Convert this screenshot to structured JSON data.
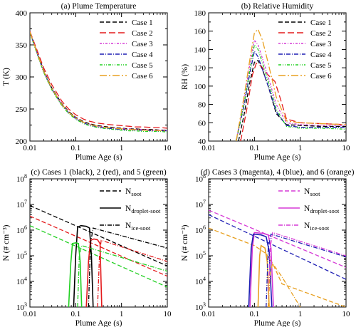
{
  "colors": {
    "black": "#000000",
    "red": "#e41a1c",
    "magenta": "#d63ad6",
    "blue": "#1f1fb4",
    "green": "#22d022",
    "orange": "#e8a020",
    "case_red": "#dd2222"
  },
  "chart_data": [
    {
      "type": "line",
      "title": "(a) Plume Temperature",
      "xlabel": "Plume Age (s)",
      "ylabel": "T (K)",
      "xscale": "log",
      "xlim": [
        0.01,
        10
      ],
      "ylim": [
        200,
        400
      ],
      "xticks": [
        "0.01",
        "0.1",
        "1",
        "10"
      ],
      "yticks": [
        "200",
        "250",
        "300",
        "350",
        "400"
      ],
      "legend_position": "top-right",
      "x": [
        0.01,
        0.015,
        0.02,
        0.03,
        0.05,
        0.07,
        0.1,
        0.15,
        0.2,
        0.3,
        0.5,
        0.7,
        1,
        1.5,
        2,
        3,
        5,
        7,
        10
      ],
      "series": [
        {
          "name": "Case 1",
          "color": "black",
          "dash": "6,3",
          "values": [
            370,
            335,
            310,
            283,
            258,
            246,
            237,
            230,
            227,
            224,
            222,
            221,
            220,
            219,
            219,
            218,
            218,
            217,
            217
          ]
        },
        {
          "name": "Case 2",
          "color": "red",
          "dash": "9,4",
          "values": [
            371,
            338,
            314,
            288,
            262,
            250,
            241,
            234,
            231,
            228,
            226,
            225,
            224,
            223,
            222,
            222,
            221,
            221,
            220
          ]
        },
        {
          "name": "Case 3",
          "color": "magenta",
          "dash": "3,2,1,2",
          "values": [
            370,
            334,
            309,
            282,
            257,
            245,
            236,
            229,
            226,
            223,
            221,
            220,
            219,
            219,
            218,
            218,
            217,
            217,
            216
          ]
        },
        {
          "name": "Case 4",
          "color": "blue",
          "dash": "6,2,1,2",
          "values": [
            370,
            333,
            308,
            281,
            256,
            244,
            235,
            228,
            225,
            222,
            220,
            219,
            218,
            218,
            217,
            217,
            216,
            216,
            216
          ]
        },
        {
          "name": "Case 5",
          "color": "green",
          "dash": "4,2,1,2,1,2",
          "values": [
            369,
            332,
            307,
            280,
            255,
            243,
            234,
            227,
            224,
            221,
            219,
            218,
            217,
            216,
            216,
            215,
            215,
            215,
            214
          ]
        },
        {
          "name": "Case 6",
          "color": "orange",
          "dash": "10,3,2,3",
          "values": [
            370,
            334,
            309,
            282,
            257,
            245,
            236,
            229,
            226,
            223,
            221,
            220,
            219,
            218,
            218,
            217,
            217,
            216,
            216
          ]
        }
      ]
    },
    {
      "type": "line",
      "title": "(b) Relative Humidity",
      "xlabel": "Plume Age (s)",
      "ylabel": "RH (%)",
      "xscale": "log",
      "xlim": [
        0.01,
        10
      ],
      "ylim": [
        40,
        180
      ],
      "xticks": [
        "0.01",
        "0.1",
        "1",
        "10"
      ],
      "yticks": [
        "40",
        "60",
        "80",
        "100",
        "120",
        "140",
        "160",
        "180"
      ],
      "legend_position": "top-right",
      "series": [
        {
          "name": "Case 1",
          "color": "black",
          "dash": "6,3",
          "x": [
            0.045,
            0.06,
            0.08,
            0.1,
            0.12,
            0.15,
            0.2,
            0.3,
            0.5,
            1,
            3,
            10
          ],
          "values": [
            40,
            70,
            105,
            126,
            128,
            118,
            100,
            70,
            58,
            57,
            56,
            56
          ]
        },
        {
          "name": "Case 2",
          "color": "red",
          "dash": "9,4",
          "x": [
            0.05,
            0.07,
            0.09,
            0.11,
            0.14,
            0.2,
            0.28,
            0.35,
            0.5,
            1,
            3,
            10
          ],
          "values": [
            40,
            78,
            112,
            125,
            122,
            112,
            105,
            90,
            64,
            60,
            59,
            58
          ]
        },
        {
          "name": "Case 3",
          "color": "magenta",
          "dash": "3,2,1,2",
          "x": [
            0.04,
            0.06,
            0.08,
            0.1,
            0.12,
            0.15,
            0.2,
            0.3,
            0.5,
            1,
            3,
            10
          ],
          "values": [
            40,
            85,
            125,
            150,
            145,
            130,
            110,
            80,
            60,
            58,
            57,
            57
          ]
        },
        {
          "name": "Case 4",
          "color": "blue",
          "dash": "6,2,1,2",
          "x": [
            0.04,
            0.06,
            0.08,
            0.1,
            0.12,
            0.15,
            0.2,
            0.3,
            0.5,
            1,
            3,
            10
          ],
          "values": [
            40,
            80,
            115,
            138,
            132,
            118,
            100,
            72,
            57,
            55,
            55,
            55
          ]
        },
        {
          "name": "Case 5",
          "color": "green",
          "dash": "4,2,1,2,1,2",
          "x": [
            0.04,
            0.06,
            0.08,
            0.1,
            0.12,
            0.15,
            0.2,
            0.3,
            0.5,
            1,
            3,
            10
          ],
          "values": [
            40,
            82,
            118,
            145,
            140,
            125,
            105,
            75,
            56,
            54,
            54,
            53
          ]
        },
        {
          "name": "Case 6",
          "color": "orange",
          "dash": "10,3,2,3",
          "x": [
            0.04,
            0.06,
            0.08,
            0.1,
            0.12,
            0.15,
            0.2,
            0.3,
            0.5,
            1,
            3,
            10
          ],
          "values": [
            40,
            90,
            130,
            158,
            162,
            150,
            125,
            88,
            62,
            60,
            59,
            58
          ]
        }
      ]
    },
    {
      "type": "line",
      "title": "(c) Cases 1 (black), 2 (red), and 5 (green)",
      "xlabel": "Plume Age (s)",
      "ylabel": "N (# cm⁻³)",
      "xscale": "log",
      "yscale": "log",
      "xlim": [
        0.01,
        10
      ],
      "ylim": [
        1000,
        100000000
      ],
      "xticks": [
        "0.01",
        "0.1",
        "1",
        "10"
      ],
      "ytick_bases": [
        "10",
        "10",
        "10",
        "10",
        "10",
        "10"
      ],
      "ytick_exps": [
        "3",
        "4",
        "5",
        "6",
        "7",
        "8"
      ],
      "legend_position": "top-right",
      "legend": [
        {
          "label": "N",
          "sub": "soot",
          "dash": "6,3"
        },
        {
          "label": "N",
          "sub": "droplet-soot",
          "dash": "none"
        },
        {
          "label": "N",
          "sub": "ice-soot",
          "dash": "6,2,1,2"
        }
      ],
      "series": [
        {
          "type": "soot",
          "color": "black",
          "dash": "6,3",
          "x": [
            0.01,
            10
          ],
          "values": [
            9000000,
            40000
          ]
        },
        {
          "type": "soot",
          "color": "red",
          "dash": "6,3",
          "x": [
            0.01,
            10
          ],
          "values": [
            3500000,
            16000
          ]
        },
        {
          "type": "soot",
          "color": "green",
          "dash": "6,3",
          "x": [
            0.01,
            10
          ],
          "values": [
            1500000,
            6000
          ]
        },
        {
          "type": "droplet",
          "color": "black",
          "dash": "none",
          "x": [
            0.09,
            0.1,
            0.11,
            0.13,
            0.17,
            0.2,
            0.22,
            0.24
          ],
          "values": [
            1000,
            100000,
            1300000,
            1500000,
            1400000,
            1200000,
            100000,
            1000
          ]
        },
        {
          "type": "droplet",
          "color": "red",
          "dash": "none",
          "x": [
            0.17,
            0.19,
            0.21,
            0.25,
            0.3,
            0.34,
            0.37
          ],
          "values": [
            1000,
            60000,
            400000,
            450000,
            420000,
            300000,
            1000
          ]
        },
        {
          "type": "droplet",
          "color": "green",
          "dash": "none",
          "x": [
            0.07,
            0.078,
            0.085,
            0.1,
            0.115,
            0.125,
            0.135
          ],
          "values": [
            1000,
            50000,
            300000,
            320000,
            300000,
            60000,
            1000
          ]
        },
        {
          "type": "ice",
          "color": "black",
          "dash": "6,2,1,2",
          "x": [
            0.19,
            0.21,
            0.24,
            10
          ],
          "values": [
            1000,
            300000,
            1200000,
            200000
          ]
        },
        {
          "type": "ice",
          "color": "red",
          "dash": "6,2,1,2",
          "x": [
            0.3,
            0.33,
            0.36,
            10
          ],
          "values": [
            1000,
            100000,
            400000,
            60000
          ]
        },
        {
          "type": "ice",
          "color": "green",
          "dash": "6,2,1,2",
          "x": [
            0.11,
            0.12,
            0.135,
            10
          ],
          "values": [
            1000,
            100000,
            250000,
            25000
          ]
        }
      ]
    },
    {
      "type": "line",
      "title": "(d) Cases 3 (magenta), 4 (blue), and 6 (orange)",
      "xlabel": "Plume Age (s)",
      "ylabel": "N (# cm⁻³)",
      "xscale": "log",
      "yscale": "log",
      "xlim": [
        0.01,
        10
      ],
      "ylim": [
        1000,
        100000000
      ],
      "xticks": [
        "0.01",
        "0.1",
        "1",
        "10"
      ],
      "ytick_bases": [
        "10",
        "10",
        "10",
        "10",
        "10",
        "10"
      ],
      "ytick_exps": [
        "3",
        "4",
        "5",
        "6",
        "7",
        "8"
      ],
      "legend_position": "top-right",
      "legend": [
        {
          "label": "N",
          "sub": "soot",
          "dash": "6,3"
        },
        {
          "label": "N",
          "sub": "droplet-soot",
          "dash": "none"
        },
        {
          "label": "N",
          "sub": "ice-soot",
          "dash": "6,2,1,2"
        }
      ],
      "series": [
        {
          "type": "soot",
          "color": "magenta",
          "dash": "6,3",
          "x": [
            0.01,
            10
          ],
          "values": [
            6000000,
            35000
          ]
        },
        {
          "type": "soot",
          "color": "blue",
          "dash": "6,3",
          "x": [
            0.01,
            10
          ],
          "values": [
            4000000,
            12000
          ]
        },
        {
          "type": "soot",
          "color": "orange",
          "dash": "6,3",
          "x": [
            0.01,
            0.1,
            0.18,
            0.25,
            0.4,
            10
          ],
          "values": [
            1200000,
            250000,
            120000,
            50000,
            8000,
            1000
          ]
        },
        {
          "type": "droplet",
          "color": "magenta",
          "dash": "none",
          "x": [
            0.08,
            0.09,
            0.1,
            0.15,
            0.2,
            0.23,
            0.26
          ],
          "values": [
            1000,
            200000,
            800000,
            750000,
            650000,
            200000,
            1000
          ]
        },
        {
          "type": "droplet",
          "color": "blue",
          "dash": "none",
          "x": [
            0.075,
            0.085,
            0.095,
            0.14,
            0.18,
            0.21,
            0.24
          ],
          "values": [
            1000,
            200000,
            700000,
            650000,
            550000,
            150000,
            1000
          ]
        },
        {
          "type": "droplet",
          "color": "orange",
          "dash": "none",
          "x": [
            0.12,
            0.13,
            0.14,
            0.17,
            0.19,
            0.21
          ],
          "values": [
            1000,
            100000,
            250000,
            200000,
            60000,
            1000
          ]
        },
        {
          "type": "ice",
          "color": "magenta",
          "dash": "6,2,1,2",
          "x": [
            0.2,
            0.22,
            0.25,
            10
          ],
          "values": [
            1000,
            200000,
            800000,
            100000
          ]
        },
        {
          "type": "ice",
          "color": "blue",
          "dash": "6,2,1,2",
          "x": [
            0.18,
            0.2,
            0.23,
            10
          ],
          "values": [
            1000,
            200000,
            700000,
            90000
          ]
        },
        {
          "type": "ice",
          "color": "orange",
          "dash": "6,2,1,2",
          "x": [
            0.2,
            0.22,
            0.25,
            0.4,
            1
          ],
          "values": [
            1000,
            20000,
            50000,
            15000,
            1000
          ]
        }
      ]
    }
  ]
}
